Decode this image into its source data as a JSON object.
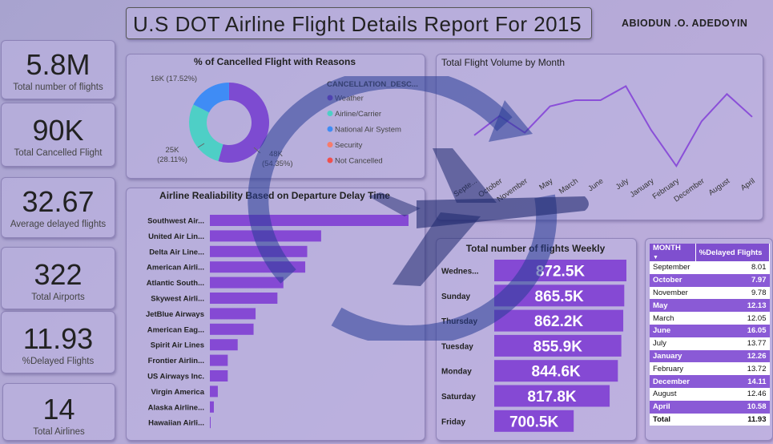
{
  "header": {
    "title": "U.S DOT Airline Flight Details Report For 2015",
    "author": "ABIODUN .O. ADEDOYIN"
  },
  "kpis": [
    {
      "value": "5.8M",
      "label": "Total number of flights"
    },
    {
      "value": "90K",
      "label": "Total Cancelled Flight"
    },
    {
      "value": "32.67",
      "label": "Average delayed flights"
    },
    {
      "value": "322",
      "label": "Total Airports"
    },
    {
      "value": "11.93",
      "label": "%Delayed Flights"
    },
    {
      "value": "14",
      "label": "Total Airlines"
    }
  ],
  "colors": {
    "purple": "#8549d4",
    "weather": "#7d4bd1",
    "airline_carrier": "#4ecfc6",
    "nas": "#3f8cf5",
    "security": "#f77c6c",
    "not_cancelled": "#f0504d",
    "line": "#8a4fd8"
  },
  "chart_data": [
    {
      "type": "pie",
      "title": "% of Cancelled Flight with Reasons",
      "legend_title": "CANCELLATION_DESC...",
      "legend": [
        "Weather",
        "Airline/Carrier",
        "National Air System",
        "Security",
        "Not Cancelled"
      ],
      "slices": [
        {
          "name": "Weather",
          "value": 48,
          "percent": 54.35,
          "label": "48K",
          "pct_label": "(54.35%)"
        },
        {
          "name": "Airline/Carrier",
          "value": 25,
          "percent": 28.11,
          "label": "25K",
          "pct_label": "(28.11%)"
        },
        {
          "name": "National Air System",
          "value": 16,
          "percent": 17.52,
          "label": "16K (17.52%)"
        },
        {
          "name": "Security",
          "value": 0,
          "percent": 0.02
        },
        {
          "name": "Not Cancelled",
          "value": 0,
          "percent": 0
        }
      ]
    },
    {
      "type": "line",
      "title": "Total Flight Volume by Month",
      "categories": [
        "Septe...",
        "October",
        "November",
        "May",
        "March",
        "June",
        "July",
        "January",
        "February",
        "December",
        "August",
        "April"
      ],
      "values": [
        464,
        486,
        467,
        497,
        504,
        504,
        520,
        470,
        429,
        480,
        511,
        485
      ],
      "ylim": [
        420,
        525
      ]
    },
    {
      "type": "bar",
      "orientation": "horizontal",
      "title": "Airline Realiability Based on Departure Delay Time",
      "categories": [
        "Southwest Air...",
        "United Air Lin...",
        "Delta Air Line...",
        "American Airli...",
        "Atlantic South...",
        "Skywest Airli...",
        "JetBlue Airways",
        "American Eag...",
        "Spirit Air Lines",
        "Frontier Airlin...",
        "US Airways Inc.",
        "Virgin America",
        "Alaska Airline...",
        "Hawaiian Airli..."
      ],
      "values": [
        100,
        56,
        49,
        48,
        37,
        34,
        23,
        22,
        14,
        9,
        9,
        4,
        2,
        0.4
      ],
      "xlim": [
        0,
        100
      ]
    },
    {
      "type": "bar",
      "orientation": "horizontal",
      "title": "Total number of flights Weekly",
      "categories": [
        "Wednes...",
        "Sunday",
        "Thursday",
        "Tuesday",
        "Monday",
        "Saturday",
        "Friday"
      ],
      "values": [
        872.5,
        865.5,
        862.2,
        855.9,
        844.6,
        817.8,
        700.5
      ],
      "labels": [
        "872.5K",
        "865.5K",
        "862.2K",
        "855.9K",
        "844.6K",
        "817.8K",
        "700.5K"
      ]
    },
    {
      "type": "table",
      "columns": [
        "MONTH",
        "%Delayed Flights"
      ],
      "rows": [
        [
          "September",
          "8.01"
        ],
        [
          "October",
          "7.97"
        ],
        [
          "November",
          "9.78"
        ],
        [
          "May",
          "12.13"
        ],
        [
          "March",
          "12.05"
        ],
        [
          "June",
          "16.05"
        ],
        [
          "July",
          "13.77"
        ],
        [
          "January",
          "12.26"
        ],
        [
          "February",
          "13.72"
        ],
        [
          "December",
          "14.11"
        ],
        [
          "August",
          "12.46"
        ],
        [
          "April",
          "10.58"
        ]
      ],
      "total": [
        "Total",
        "11.93"
      ]
    }
  ]
}
